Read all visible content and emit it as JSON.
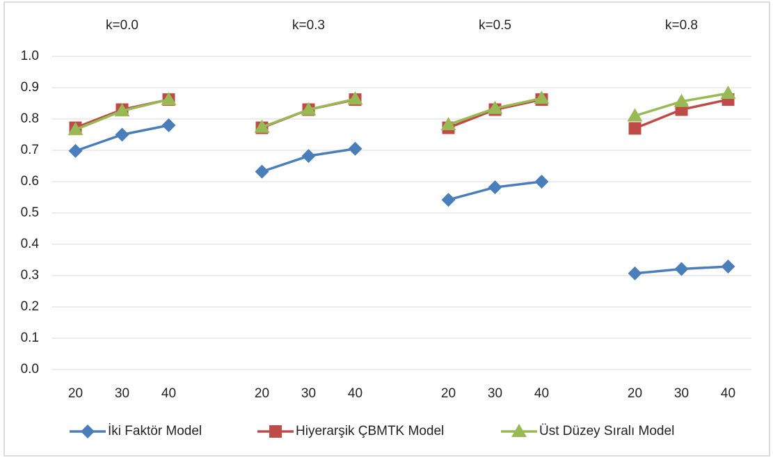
{
  "chart_data": {
    "type": "line",
    "group_labels": [
      "k=0.0",
      "k=0.3",
      "k=0.5",
      "k=0.8"
    ],
    "categories": [
      "20",
      "30",
      "40",
      null,
      "20",
      "30",
      "40",
      null,
      "20",
      "30",
      "40",
      null,
      "20",
      "30",
      "40"
    ],
    "series": [
      {
        "name": "İki Faktör Model",
        "color": "#4a7ebb",
        "marker": "diamond",
        "values": [
          0.698,
          0.75,
          0.78,
          null,
          0.632,
          0.682,
          0.705,
          null,
          0.542,
          0.582,
          0.6,
          null,
          0.307,
          0.321,
          0.329
        ]
      },
      {
        "name": "Hiyerarşik ÇBMTK Model",
        "color": "#be4b48",
        "marker": "square",
        "values": [
          0.772,
          0.83,
          0.862,
          null,
          0.772,
          0.83,
          0.862,
          null,
          0.772,
          0.83,
          0.862,
          null,
          0.77,
          0.83,
          0.862
        ]
      },
      {
        "name": "Üst Düzey Sıralı Model",
        "color": "#98b954",
        "marker": "triangle",
        "values": [
          0.766,
          0.826,
          0.862,
          null,
          0.774,
          0.83,
          0.864,
          null,
          0.782,
          0.834,
          0.866,
          null,
          0.81,
          0.856,
          0.882
        ]
      }
    ],
    "ylim": [
      0,
      1
    ],
    "yticks": [
      {
        "value": 0,
        "label": "0.0"
      },
      0.1,
      0.2,
      0.3,
      0.4,
      0.5,
      0.6,
      0.7,
      0.8,
      0.9,
      {
        "value": 1,
        "label": "1.0"
      }
    ],
    "grid": true,
    "legend": "bottom"
  }
}
